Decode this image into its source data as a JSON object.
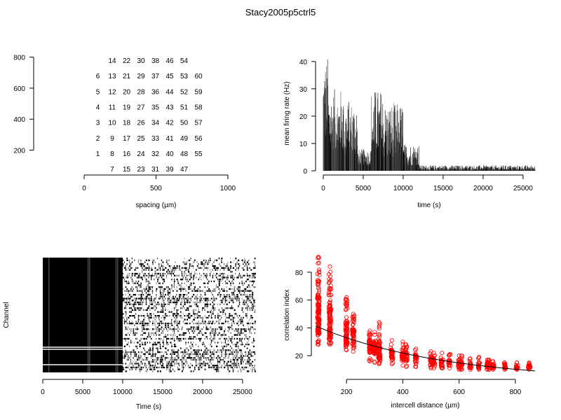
{
  "page": {
    "title": "Stacy2005p5ctrl5"
  },
  "chart_data": [
    {
      "type": "text-layout",
      "panel": "electrode-layout",
      "xlabel": "spacing (µm)",
      "xticks": [
        "0",
        "500",
        "1000"
      ],
      "yticks": [
        "200",
        "400",
        "600",
        "800"
      ],
      "xlim": [
        0,
        1000
      ],
      "ylim": [
        130,
        830
      ],
      "x_tick_values": [
        0,
        500,
        1000
      ],
      "y_tick_values": [
        200,
        400,
        600,
        800
      ],
      "labels": [
        {
          "t": "14",
          "x": 200,
          "y": 780
        },
        {
          "t": "22",
          "x": 300,
          "y": 780
        },
        {
          "t": "30",
          "x": 400,
          "y": 780
        },
        {
          "t": "38",
          "x": 500,
          "y": 780
        },
        {
          "t": "46",
          "x": 600,
          "y": 780
        },
        {
          "t": "54",
          "x": 700,
          "y": 780
        },
        {
          "t": "6",
          "x": 100,
          "y": 680
        },
        {
          "t": "13",
          "x": 200,
          "y": 680
        },
        {
          "t": "21",
          "x": 300,
          "y": 680
        },
        {
          "t": "29",
          "x": 400,
          "y": 680
        },
        {
          "t": "37",
          "x": 500,
          "y": 680
        },
        {
          "t": "45",
          "x": 600,
          "y": 680
        },
        {
          "t": "53",
          "x": 700,
          "y": 680
        },
        {
          "t": "60",
          "x": 800,
          "y": 680
        },
        {
          "t": "5",
          "x": 100,
          "y": 580
        },
        {
          "t": "12",
          "x": 200,
          "y": 580
        },
        {
          "t": "20",
          "x": 300,
          "y": 580
        },
        {
          "t": "28",
          "x": 400,
          "y": 580
        },
        {
          "t": "36",
          "x": 500,
          "y": 580
        },
        {
          "t": "44",
          "x": 600,
          "y": 580
        },
        {
          "t": "52",
          "x": 700,
          "y": 580
        },
        {
          "t": "59",
          "x": 800,
          "y": 580
        },
        {
          "t": "4",
          "x": 100,
          "y": 480
        },
        {
          "t": "11",
          "x": 200,
          "y": 480
        },
        {
          "t": "19",
          "x": 300,
          "y": 480
        },
        {
          "t": "27",
          "x": 400,
          "y": 480
        },
        {
          "t": "35",
          "x": 500,
          "y": 480
        },
        {
          "t": "43",
          "x": 600,
          "y": 480
        },
        {
          "t": "51",
          "x": 700,
          "y": 480
        },
        {
          "t": "58",
          "x": 800,
          "y": 480
        },
        {
          "t": "3",
          "x": 100,
          "y": 380
        },
        {
          "t": "10",
          "x": 200,
          "y": 380
        },
        {
          "t": "18",
          "x": 300,
          "y": 380
        },
        {
          "t": "26",
          "x": 400,
          "y": 380
        },
        {
          "t": "34",
          "x": 500,
          "y": 380
        },
        {
          "t": "42",
          "x": 600,
          "y": 380
        },
        {
          "t": "50",
          "x": 700,
          "y": 380
        },
        {
          "t": "57",
          "x": 800,
          "y": 380
        },
        {
          "t": "2",
          "x": 100,
          "y": 280
        },
        {
          "t": "9",
          "x": 200,
          "y": 280
        },
        {
          "t": "17",
          "x": 300,
          "y": 280
        },
        {
          "t": "25",
          "x": 400,
          "y": 280
        },
        {
          "t": "33",
          "x": 500,
          "y": 280
        },
        {
          "t": "41",
          "x": 600,
          "y": 280
        },
        {
          "t": "49",
          "x": 700,
          "y": 280
        },
        {
          "t": "56",
          "x": 800,
          "y": 280
        },
        {
          "t": "1",
          "x": 100,
          "y": 180
        },
        {
          "t": "8",
          "x": 200,
          "y": 180
        },
        {
          "t": "16",
          "x": 300,
          "y": 180
        },
        {
          "t": "24",
          "x": 400,
          "y": 180
        },
        {
          "t": "32",
          "x": 500,
          "y": 180
        },
        {
          "t": "40",
          "x": 600,
          "y": 180
        },
        {
          "t": "48",
          "x": 700,
          "y": 180
        },
        {
          "t": "55",
          "x": 800,
          "y": 180
        },
        {
          "t": "7",
          "x": 200,
          "y": 80
        },
        {
          "t": "15",
          "x": 300,
          "y": 80
        },
        {
          "t": "23",
          "x": 400,
          "y": 80
        },
        {
          "t": "31",
          "x": 500,
          "y": 80
        },
        {
          "t": "39",
          "x": 600,
          "y": 80
        },
        {
          "t": "47",
          "x": 700,
          "y": 80
        }
      ]
    },
    {
      "type": "bar",
      "panel": "firing-rate",
      "xlabel": "time (s)",
      "ylabel": "mean firing rate (Hz)",
      "xlim": [
        0,
        26500
      ],
      "ylim": [
        0,
        42
      ],
      "xticks": [
        "0",
        "5000",
        "10000",
        "15000",
        "20000",
        "25000"
      ],
      "x_tick_values": [
        0,
        5000,
        10000,
        15000,
        20000,
        25000
      ],
      "yticks": [
        "0",
        "10",
        "20",
        "30",
        "40"
      ],
      "y_tick_values": [
        0,
        10,
        20,
        30,
        40
      ],
      "segments": [
        {
          "x0": 0,
          "x1": 600,
          "peak": 42,
          "base": 12
        },
        {
          "x0": 600,
          "x1": 2500,
          "peak": 30,
          "base": 8
        },
        {
          "x0": 2500,
          "x1": 4300,
          "peak": 26,
          "base": 6
        },
        {
          "x0": 4300,
          "x1": 6000,
          "peak": 8,
          "base": 2
        },
        {
          "x0": 6000,
          "x1": 7500,
          "peak": 30,
          "base": 7
        },
        {
          "x0": 7500,
          "x1": 10000,
          "peak": 25,
          "base": 5
        },
        {
          "x0": 10000,
          "x1": 12000,
          "peak": 10,
          "base": 2
        },
        {
          "x0": 12000,
          "x1": 26500,
          "peak": 2,
          "base": 0.3
        }
      ]
    },
    {
      "type": "raster",
      "panel": "spike-raster",
      "xlabel": "Time (s)",
      "ylabel": "Channel",
      "xlim": [
        0,
        26500
      ],
      "xticks": [
        "0",
        "5000",
        "10000",
        "15000",
        "20000",
        "25000"
      ],
      "x_tick_values": [
        0,
        5000,
        10000,
        15000,
        20000,
        25000
      ],
      "channels": 60,
      "dense_until": 10000
    },
    {
      "type": "scatter",
      "panel": "correlation",
      "xlabel": "intercell distance (µm)",
      "ylabel": "correlation index",
      "xlim": [
        90,
        870
      ],
      "ylim": [
        8,
        92
      ],
      "xticks": [
        "200",
        "400",
        "600",
        "800"
      ],
      "x_tick_values": [
        200,
        400,
        600,
        800
      ],
      "yticks": [
        "20",
        "40",
        "60",
        "80"
      ],
      "y_tick_values": [
        20,
        40,
        60,
        80
      ],
      "marker_color": "#ff0000",
      "fit_color": "#000000",
      "columns": [
        {
          "x": 100,
          "mean": 50,
          "min": 28,
          "max": 91
        },
        {
          "x": 141,
          "mean": 44,
          "min": 28,
          "max": 84
        },
        {
          "x": 200,
          "mean": 37,
          "min": 24,
          "max": 62
        },
        {
          "x": 224,
          "mean": 33,
          "min": 23,
          "max": 50
        },
        {
          "x": 283,
          "mean": 27,
          "min": 16,
          "max": 38
        },
        {
          "x": 300,
          "mean": 26,
          "min": 15,
          "max": 37
        },
        {
          "x": 316,
          "mean": 24,
          "min": 14,
          "max": 44
        },
        {
          "x": 361,
          "mean": 21,
          "min": 14,
          "max": 31
        },
        {
          "x": 400,
          "mean": 20,
          "min": 13,
          "max": 30
        },
        {
          "x": 412,
          "mean": 19,
          "min": 12,
          "max": 28
        },
        {
          "x": 447,
          "mean": 18,
          "min": 12,
          "max": 25
        },
        {
          "x": 500,
          "mean": 16,
          "min": 11,
          "max": 23
        },
        {
          "x": 510,
          "mean": 16,
          "min": 11,
          "max": 22
        },
        {
          "x": 539,
          "mean": 15,
          "min": 11,
          "max": 22
        },
        {
          "x": 566,
          "mean": 15,
          "min": 11,
          "max": 21
        },
        {
          "x": 600,
          "mean": 14,
          "min": 10,
          "max": 20
        },
        {
          "x": 608,
          "mean": 14,
          "min": 10,
          "max": 20
        },
        {
          "x": 640,
          "mean": 13,
          "min": 10,
          "max": 18
        },
        {
          "x": 671,
          "mean": 13,
          "min": 10,
          "max": 19
        },
        {
          "x": 700,
          "mean": 13,
          "min": 10,
          "max": 17
        },
        {
          "x": 707,
          "mean": 13,
          "min": 10,
          "max": 17
        },
        {
          "x": 721,
          "mean": 12,
          "min": 10,
          "max": 16
        },
        {
          "x": 762,
          "mean": 12,
          "min": 10,
          "max": 15
        },
        {
          "x": 806,
          "mean": 12,
          "min": 10,
          "max": 15
        },
        {
          "x": 849,
          "mean": 12,
          "min": 10,
          "max": 15
        }
      ],
      "fit": {
        "a": 48,
        "b": 0.0022
      }
    }
  ]
}
